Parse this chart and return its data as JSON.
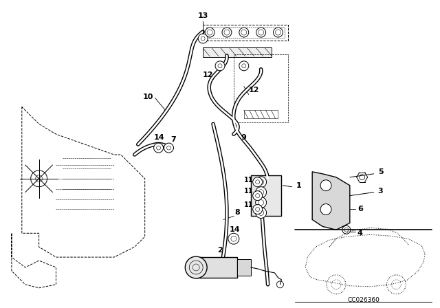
{
  "bg_color": "#ffffff",
  "line_color": "#000000",
  "diagram_code": "CC026360",
  "lw_thin": 0.7,
  "lw_med": 1.0,
  "lw_thick": 1.5,
  "lw_hose": 2.5
}
